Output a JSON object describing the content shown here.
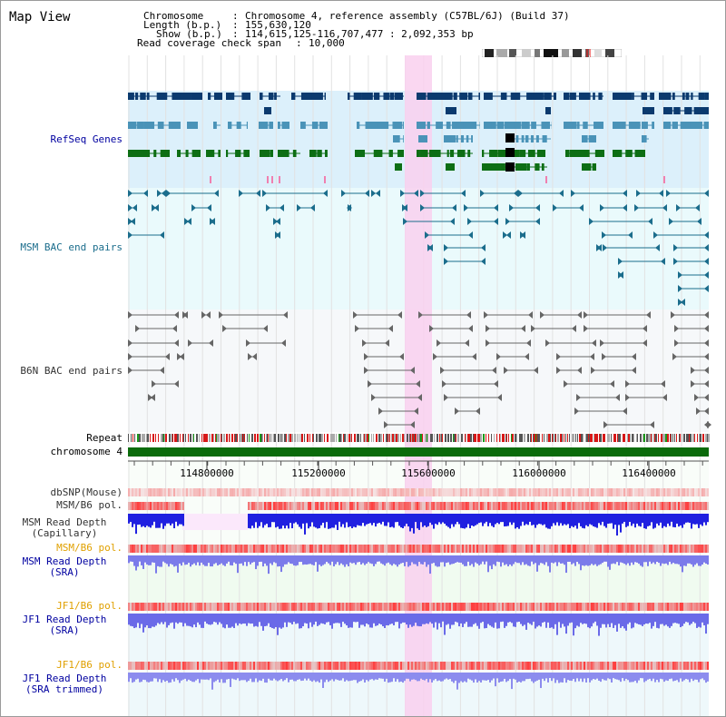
{
  "title": "Map View",
  "info": {
    "chromosome_label": "Chromosome",
    "chromosome_value": "Chromosome 4, reference assembly (C57BL/6J) (Build 37)",
    "length_label": "Length (b.p.)",
    "length_value": "155,630,120",
    "show_label": "Show (b.p.)",
    "show_value": "114,615,125-116,707,477 : 2,092,353 bp",
    "coverage_label": "Read coverage check span",
    "coverage_value": "10,000"
  },
  "tracks": {
    "refseq": "RefSeq Genes",
    "msm_bac": "MSM BAC end pairs",
    "b6n_bac": "B6N BAC end pairs",
    "repeat": "Repeat",
    "chromosome": "chromosome 4",
    "dbsnp": "dbSNP(Mouse)",
    "msm_b6_pol": "MSM/B6 pol.",
    "msm_depth_cap": "MSM Read Depth\n(Capillary)",
    "msm_b6_pol2": "MSM/B6 pol.",
    "msm_depth_sra": "MSM Read Depth\n(SRA)",
    "jf1_b6_pol": "JF1/B6 pol.",
    "jf1_depth_sra": "JF1 Read Depth\n(SRA)",
    "jf1_b6_pol2": "JF1/B6 pol.",
    "jf1_depth_trim": "JF1 Read Depth\n(SRA trimmed)"
  },
  "axis": {
    "ticks": [
      "114800000",
      "115200000",
      "115600000",
      "116000000",
      "116400000"
    ]
  },
  "colors": {
    "refseq_bg": "#dcf0fb",
    "msm_bac_bg": "#eafafc",
    "b6n_bac_bg": "#f6f8fa",
    "highlight": "#f9d0ee",
    "gene_dark": "#0b3a6e",
    "gene_light": "#4a93b8",
    "gene_green": "#0d6e14",
    "bac_teal": "#1b6d8c",
    "bac_gray": "#666666",
    "chrom_green": "#0b6b0b",
    "label_navy": "#0000a0",
    "label_orange": "#e0a000",
    "label_gray": "#333333"
  }
}
